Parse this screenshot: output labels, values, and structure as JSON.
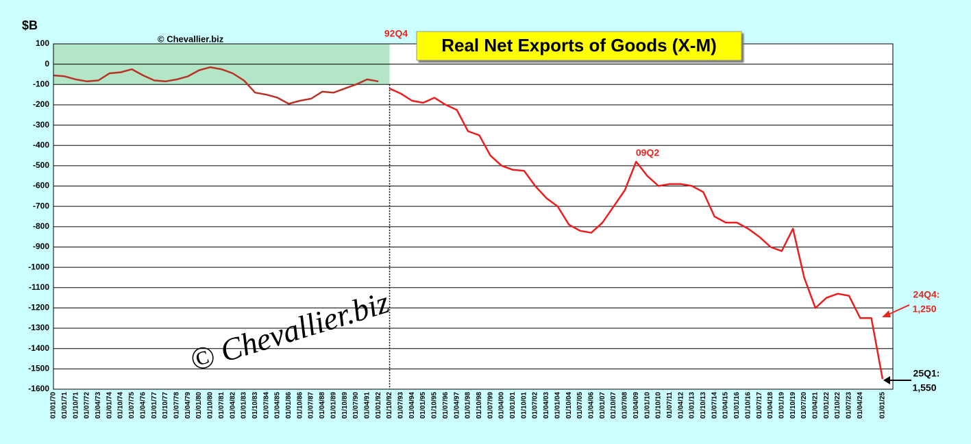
{
  "chart_data": {
    "type": "line",
    "title": "Real Net Exports of Goods (X-M)",
    "y_label": "$B",
    "watermark_small": "© Chevallier.biz",
    "watermark_large": "© Chevallier.biz",
    "categories": [
      "01/01/70",
      "01/01/71",
      "01/10/71",
      "01/07/72",
      "01/04/73",
      "01/01/74",
      "01/10/74",
      "01/07/75",
      "01/04/76",
      "01/01/77",
      "01/10/77",
      "01/07/78",
      "01/04/79",
      "01/01/80",
      "01/10/80",
      "01/07/81",
      "01/04/82",
      "01/01/83",
      "01/10/83",
      "01/07/84",
      "01/04/85",
      "01/01/86",
      "01/10/86",
      "01/07/87",
      "01/04/88",
      "01/01/89",
      "01/10/89",
      "01/07/90",
      "01/04/91",
      "01/01/92",
      "01/10/92",
      "01/07/93",
      "01/04/94",
      "01/01/95",
      "01/10/95",
      "01/07/96",
      "01/04/97",
      "01/01/98",
      "01/10/98",
      "01/07/99",
      "01/04/00",
      "01/01/01",
      "01/10/01",
      "01/07/02",
      "01/04/03",
      "01/01/04",
      "01/10/04",
      "01/07/05",
      "01/04/06",
      "01/01/07",
      "01/10/07",
      "01/07/08",
      "01/04/09",
      "01/01/10",
      "01/10/10",
      "01/07/11",
      "01/04/12",
      "01/01/13",
      "01/10/13",
      "01/07/14",
      "01/04/15",
      "01/01/16",
      "01/10/16",
      "01/07/17",
      "01/04/18",
      "01/01/19",
      "01/10/19",
      "01/07/20",
      "01/04/21",
      "01/01/22",
      "01/10/22",
      "01/07/23",
      "01/04/24",
      null,
      "01/01/25"
    ],
    "series": [
      {
        "color": "#b83226",
        "values": [
          -55,
          -60,
          -75,
          -85,
          -80,
          -45,
          -40,
          -25,
          -55,
          -80,
          -85,
          -75,
          -60,
          -30,
          -15,
          -25,
          -45,
          -80,
          -140,
          -150,
          -165,
          -195,
          -180,
          -170,
          -135,
          -140,
          -120,
          -100,
          -75,
          -85,
          null,
          null,
          null,
          null,
          null,
          null,
          null,
          null,
          null,
          null,
          null,
          null,
          null,
          null,
          null,
          null,
          null,
          null,
          null,
          null,
          null,
          null,
          null,
          null,
          null,
          null,
          null,
          null,
          null,
          null,
          null,
          null,
          null,
          null,
          null,
          null,
          null,
          null,
          null,
          null,
          null,
          null,
          null,
          null,
          null
        ]
      },
      {
        "color": "#ee1c1c",
        "values": [
          null,
          null,
          null,
          null,
          null,
          null,
          null,
          null,
          null,
          null,
          null,
          null,
          null,
          null,
          null,
          null,
          null,
          null,
          null,
          null,
          null,
          null,
          null,
          null,
          null,
          null,
          null,
          null,
          null,
          null,
          -120,
          -145,
          -180,
          -190,
          -165,
          -200,
          -225,
          -330,
          -350,
          -450,
          -500,
          -520,
          -525,
          -600,
          -660,
          -700,
          -790,
          -820,
          -830,
          -780,
          -700,
          -620,
          -480,
          -550,
          -600,
          -590,
          -590,
          -600,
          -630,
          -750,
          -780,
          -780,
          -810,
          -850,
          -900,
          -920,
          -810,
          -1050,
          -1200,
          -1150,
          -1130,
          -1140,
          -1250,
          -1250,
          -1550
        ]
      }
    ],
    "ylim": [
      -1600,
      100
    ],
    "yticks": [
      100,
      0,
      -100,
      -200,
      -300,
      -400,
      -500,
      -600,
      -700,
      -800,
      -900,
      -1000,
      -1100,
      -1200,
      -1300,
      -1400,
      -1500,
      -1600
    ],
    "grid": true,
    "highlight": {
      "ylim": [
        -100,
        100
      ],
      "end": "01/10/92",
      "color": "#b3e6c6"
    },
    "annotations": [
      {
        "text": "92Q4",
        "color": "#e8241c"
      },
      {
        "text": "09Q2",
        "color": "#e8241c"
      },
      {
        "text": "24Q4:",
        "color": "#e8241c"
      },
      {
        "text": "1,250",
        "color": "#e8241c"
      },
      {
        "text": "25Q1:",
        "color": "#000000"
      },
      {
        "text": "1,550",
        "color": "#000000"
      }
    ]
  }
}
